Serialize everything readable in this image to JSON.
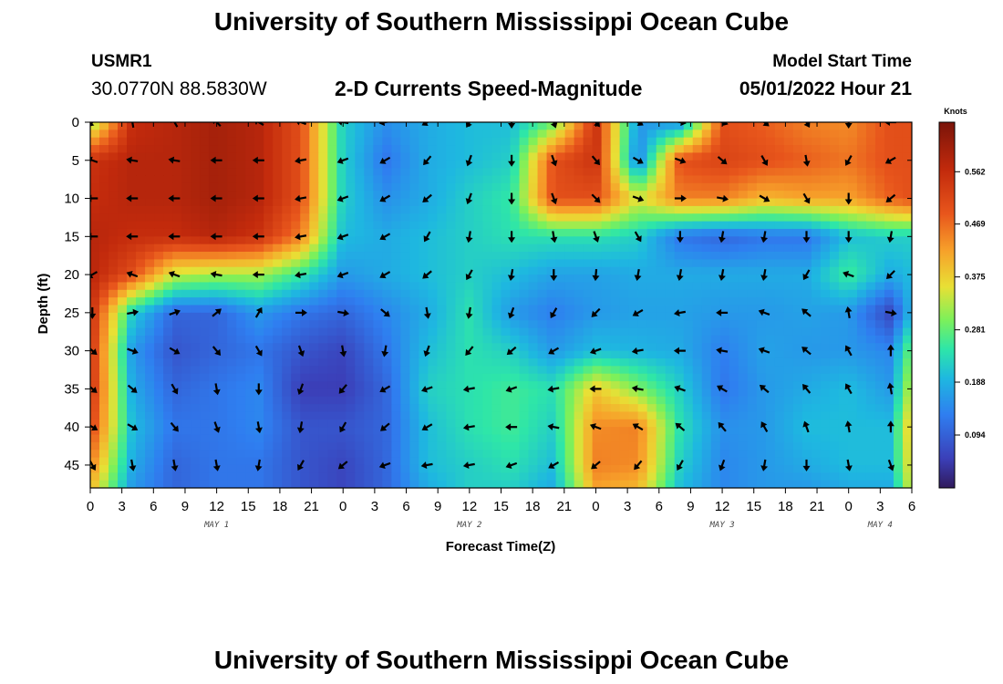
{
  "header": {
    "title": "University of Southern Mississippi Ocean Cube",
    "station": "USMR1",
    "coords": "30.0770N  88.5830W",
    "plot_title": "2-D Currents Speed-Magnitude",
    "model_label": "Model Start Time",
    "model_time": "05/01/2022 Hour 21"
  },
  "footer": {
    "title": "University of Southern Mississippi Ocean Cube"
  },
  "chart_data": {
    "type": "heatmap",
    "title": "2-D Currents Speed-Magnitude",
    "xlabel": "Forecast Time(Z)",
    "ylabel": "Depth (ft)",
    "x_ticks": [
      "0",
      "3",
      "6",
      "9",
      "12",
      "15",
      "18",
      "21",
      "0",
      "3",
      "6",
      "9",
      "12",
      "15",
      "18",
      "21",
      "0",
      "3",
      "6",
      "9",
      "12",
      "15",
      "18",
      "21",
      "0",
      "3",
      "6"
    ],
    "x_range_hours": [
      0,
      78
    ],
    "day_labels": [
      {
        "label": "MAY 1",
        "hour": 12
      },
      {
        "label": "MAY 2",
        "hour": 36
      },
      {
        "label": "MAY 3",
        "hour": 60
      },
      {
        "label": "MAY 4",
        "hour": 75
      }
    ],
    "y_ticks": [
      0,
      5,
      10,
      15,
      20,
      25,
      30,
      35,
      40,
      45
    ],
    "y_range_ft": [
      0,
      48
    ],
    "colorbar": {
      "label": "Knots",
      "ticks": [
        "0.562",
        "0.469",
        "0.375",
        "0.281",
        "0.188",
        "0.094"
      ],
      "range": [
        0,
        0.65
      ]
    },
    "arrow_times": [
      0,
      4,
      8,
      12,
      16,
      20,
      24,
      28,
      32,
      36,
      40,
      44,
      48,
      52,
      56,
      60,
      64,
      68,
      72,
      76
    ],
    "arrow_depths": [
      0,
      5,
      10,
      15,
      20,
      25,
      30,
      35,
      40,
      45
    ],
    "speed_grid_hours": [
      0,
      4,
      8,
      12,
      16,
      20,
      24,
      28,
      32,
      36,
      40,
      44,
      48,
      52,
      56,
      60,
      64,
      68,
      72,
      76,
      78
    ],
    "speed_grid_depths": [
      0,
      5,
      10,
      15,
      20,
      25,
      30,
      35,
      40,
      45,
      48
    ],
    "speed": [
      [
        0.3,
        0.56,
        0.58,
        0.6,
        0.58,
        0.5,
        0.22,
        0.15,
        0.18,
        0.2,
        0.2,
        0.28,
        0.55,
        0.16,
        0.15,
        0.5,
        0.48,
        0.45,
        0.44,
        0.5,
        0.5
      ],
      [
        0.55,
        0.58,
        0.58,
        0.6,
        0.58,
        0.5,
        0.22,
        0.12,
        0.18,
        0.2,
        0.22,
        0.5,
        0.55,
        0.13,
        0.5,
        0.52,
        0.5,
        0.48,
        0.46,
        0.5,
        0.5
      ],
      [
        0.56,
        0.58,
        0.58,
        0.6,
        0.58,
        0.5,
        0.22,
        0.15,
        0.18,
        0.22,
        0.25,
        0.5,
        0.5,
        0.35,
        0.45,
        0.45,
        0.4,
        0.42,
        0.42,
        0.48,
        0.5
      ],
      [
        0.58,
        0.56,
        0.56,
        0.58,
        0.55,
        0.45,
        0.2,
        0.18,
        0.2,
        0.22,
        0.24,
        0.24,
        0.24,
        0.22,
        0.12,
        0.1,
        0.12,
        0.12,
        0.2,
        0.22,
        0.22
      ],
      [
        0.58,
        0.5,
        0.34,
        0.32,
        0.32,
        0.25,
        0.16,
        0.18,
        0.2,
        0.22,
        0.2,
        0.17,
        0.17,
        0.18,
        0.18,
        0.18,
        0.18,
        0.18,
        0.26,
        0.18,
        0.2
      ],
      [
        0.56,
        0.22,
        0.1,
        0.1,
        0.16,
        0.12,
        0.1,
        0.14,
        0.18,
        0.24,
        0.16,
        0.13,
        0.16,
        0.17,
        0.17,
        0.16,
        0.16,
        0.17,
        0.16,
        0.06,
        0.2
      ],
      [
        0.55,
        0.16,
        0.08,
        0.1,
        0.12,
        0.08,
        0.06,
        0.12,
        0.2,
        0.24,
        0.22,
        0.16,
        0.2,
        0.19,
        0.18,
        0.13,
        0.17,
        0.16,
        0.16,
        0.14,
        0.3
      ],
      [
        0.55,
        0.18,
        0.1,
        0.12,
        0.14,
        0.05,
        0.05,
        0.1,
        0.22,
        0.24,
        0.26,
        0.24,
        0.38,
        0.3,
        0.22,
        0.12,
        0.16,
        0.18,
        0.2,
        0.16,
        0.35
      ],
      [
        0.52,
        0.2,
        0.12,
        0.12,
        0.14,
        0.08,
        0.08,
        0.1,
        0.2,
        0.24,
        0.26,
        0.22,
        0.44,
        0.45,
        0.24,
        0.15,
        0.16,
        0.2,
        0.2,
        0.2,
        0.4
      ],
      [
        0.45,
        0.18,
        0.1,
        0.12,
        0.12,
        0.08,
        0.06,
        0.1,
        0.2,
        0.22,
        0.24,
        0.2,
        0.45,
        0.44,
        0.22,
        0.14,
        0.16,
        0.18,
        0.2,
        0.2,
        0.38
      ],
      [
        0.4,
        0.16,
        0.1,
        0.12,
        0.12,
        0.08,
        0.06,
        0.1,
        0.18,
        0.22,
        0.22,
        0.18,
        0.42,
        0.4,
        0.2,
        0.14,
        0.16,
        0.16,
        0.18,
        0.18,
        0.36
      ]
    ],
    "arrow_dirs_deg": [
      [
        135,
        260,
        240,
        225,
        210,
        200,
        190,
        170,
        150,
        120,
        90,
        70,
        50,
        30,
        10,
        20,
        40,
        60,
        90,
        180
      ],
      [
        200,
        190,
        190,
        180,
        180,
        170,
        160,
        150,
        130,
        110,
        90,
        70,
        50,
        30,
        20,
        40,
        60,
        80,
        120,
        150
      ],
      [
        180,
        180,
        180,
        180,
        180,
        170,
        160,
        150,
        140,
        110,
        90,
        70,
        45,
        20,
        0,
        10,
        30,
        60,
        90,
        140
      ],
      [
        180,
        180,
        180,
        180,
        180,
        170,
        160,
        150,
        120,
        100,
        90,
        80,
        70,
        60,
        90,
        100,
        100,
        90,
        90,
        100
      ],
      [
        150,
        200,
        200,
        190,
        180,
        170,
        160,
        150,
        140,
        120,
        100,
        90,
        95,
        100,
        100,
        100,
        100,
        120,
        200,
        135
      ],
      [
        90,
        350,
        340,
        320,
        300,
        0,
        10,
        40,
        80,
        100,
        110,
        120,
        135,
        150,
        170,
        180,
        200,
        220,
        260,
        10
      ],
      [
        40,
        20,
        30,
        50,
        60,
        70,
        80,
        100,
        110,
        130,
        140,
        150,
        160,
        170,
        180,
        190,
        200,
        220,
        240,
        270
      ],
      [
        40,
        40,
        60,
        80,
        90,
        110,
        130,
        150,
        160,
        170,
        160,
        170,
        180,
        190,
        200,
        210,
        220,
        230,
        240,
        260
      ],
      [
        30,
        30,
        50,
        70,
        80,
        100,
        120,
        140,
        150,
        170,
        180,
        190,
        200,
        210,
        220,
        230,
        240,
        250,
        260,
        270
      ],
      [
        60,
        80,
        80,
        80,
        100,
        120,
        140,
        160,
        170,
        170,
        160,
        150,
        140,
        130,
        120,
        110,
        100,
        90,
        80,
        70
      ]
    ]
  }
}
